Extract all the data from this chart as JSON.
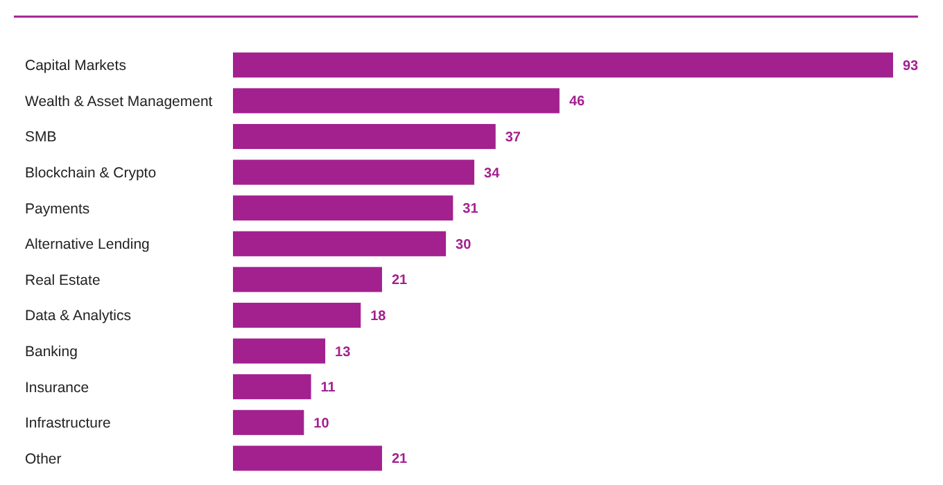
{
  "chart_data": {
    "type": "bar",
    "orientation": "horizontal",
    "categories": [
      "Capital Markets",
      "Wealth & Asset Management",
      "SMB",
      "Blockchain & Crypto",
      "Payments",
      "Alternative Lending",
      "Real Estate",
      "Data & Analytics",
      "Banking",
      "Insurance",
      "Infrastructure",
      "Other"
    ],
    "values": [
      93,
      46,
      37,
      34,
      31,
      30,
      21,
      18,
      13,
      11,
      10,
      21
    ],
    "color": "#a3208f",
    "data_labels": true
  }
}
